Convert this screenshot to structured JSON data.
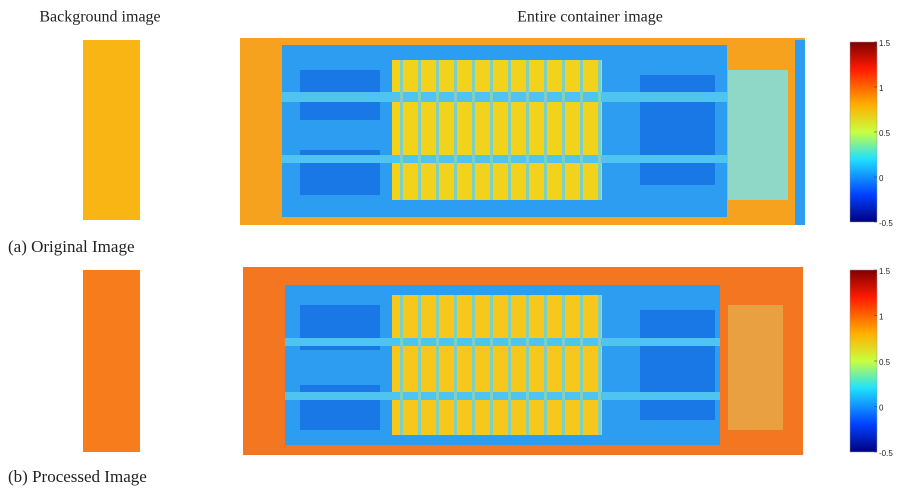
{
  "headers": {
    "background": "Background image",
    "container": "Entire container image"
  },
  "panels": [
    {
      "caption": "(a) Original Image",
      "colorbar_ticks": [
        1.5,
        1,
        0.5,
        0,
        -0.5
      ]
    },
    {
      "caption": "(b) Processed Image",
      "colorbar_ticks": [
        1.5,
        1,
        0.5,
        0,
        -0.5
      ]
    }
  ]
}
